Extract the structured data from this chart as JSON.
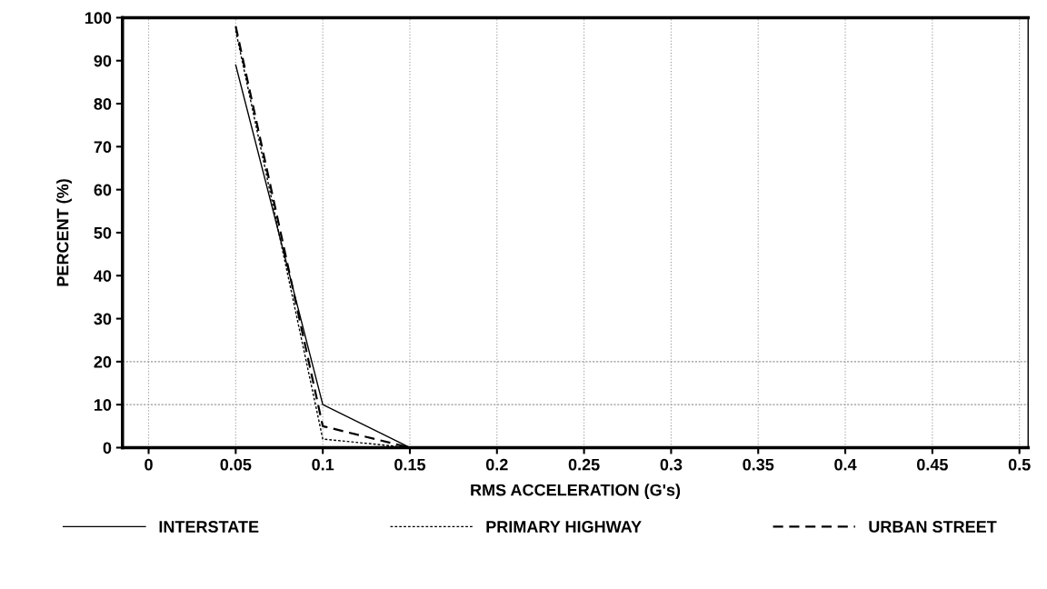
{
  "chart_data": {
    "type": "line",
    "xlabel": "RMS ACCELERATION (G's)",
    "ylabel": "PERCENT (%)",
    "x": [
      0.05,
      0.1,
      0.15,
      0.2,
      0.25,
      0.3,
      0.35,
      0.4,
      0.45,
      0.5
    ],
    "series": [
      {
        "name": "INTERSTATE",
        "color": "#000000",
        "line_style": "solid",
        "values": [
          89,
          10,
          0,
          0,
          0,
          0,
          0,
          0,
          0,
          0
        ]
      },
      {
        "name": "PRIMARY HIGHWAY",
        "color": "#000000",
        "line_style": "dotted",
        "values": [
          97,
          2,
          0,
          0,
          0,
          0,
          0,
          0,
          0,
          0
        ]
      },
      {
        "name": "URBAN STREET",
        "color": "#000000",
        "line_style": "dashed",
        "values": [
          98,
          5,
          0,
          0,
          0,
          0,
          0,
          0,
          0,
          0
        ]
      }
    ],
    "xlim": [
      -0.015,
      0.505
    ],
    "xticks": [
      0,
      0.05,
      0.1,
      0.15,
      0.2,
      0.25,
      0.3,
      0.35,
      0.4,
      0.45,
      0.5
    ],
    "ylim": [
      0,
      100
    ],
    "yticks": [
      0,
      10,
      20,
      30,
      40,
      50,
      60,
      70,
      80,
      90,
      100
    ],
    "grid": "x",
    "ref_lines": [
      {
        "axis": "y",
        "value": 10,
        "color": "#999999",
        "line_style": "dotted"
      },
      {
        "axis": "y",
        "value": 20,
        "color": "#999999",
        "line_style": "dotted"
      }
    ],
    "legend": "bottom",
    "marker": "none"
  }
}
